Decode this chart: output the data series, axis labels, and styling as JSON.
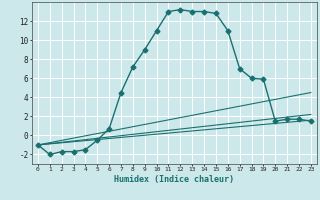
{
  "xlabel": "Humidex (Indice chaleur)",
  "bg_color": "#cce8ea",
  "grid_color": "#ffffff",
  "line_color": "#1a7070",
  "x_ticks": [
    0,
    1,
    2,
    3,
    4,
    5,
    6,
    7,
    8,
    9,
    10,
    11,
    12,
    13,
    14,
    15,
    16,
    17,
    18,
    19,
    20,
    21,
    22,
    23
  ],
  "ylim": [
    -3,
    14
  ],
  "xlim": [
    -0.5,
    23.5
  ],
  "yticks": [
    -2,
    0,
    2,
    4,
    6,
    8,
    10,
    12
  ],
  "series": [
    {
      "x": [
        0,
        1,
        2,
        3,
        4,
        5,
        6,
        7,
        8,
        9,
        10,
        11,
        12,
        13,
        14,
        15,
        16,
        17,
        18,
        19,
        20,
        21,
        22,
        23
      ],
      "y": [
        -1,
        -2,
        -1.7,
        -1.7,
        -1.5,
        -0.5,
        0.7,
        4.5,
        7.2,
        9,
        11,
        13,
        13.2,
        13,
        13,
        12.8,
        11,
        7,
        6,
        5.9,
        1.5,
        1.7,
        1.7,
        1.5
      ],
      "marker": "D",
      "markersize": 2.5,
      "linewidth": 1.0
    },
    {
      "x": [
        0,
        23
      ],
      "y": [
        -1,
        1.6
      ],
      "marker": null,
      "markersize": 0,
      "linewidth": 0.8
    },
    {
      "x": [
        0,
        23
      ],
      "y": [
        -1,
        2.2
      ],
      "marker": null,
      "markersize": 0,
      "linewidth": 0.8
    },
    {
      "x": [
        0,
        23
      ],
      "y": [
        -1,
        4.5
      ],
      "marker": null,
      "markersize": 0,
      "linewidth": 0.8
    }
  ]
}
